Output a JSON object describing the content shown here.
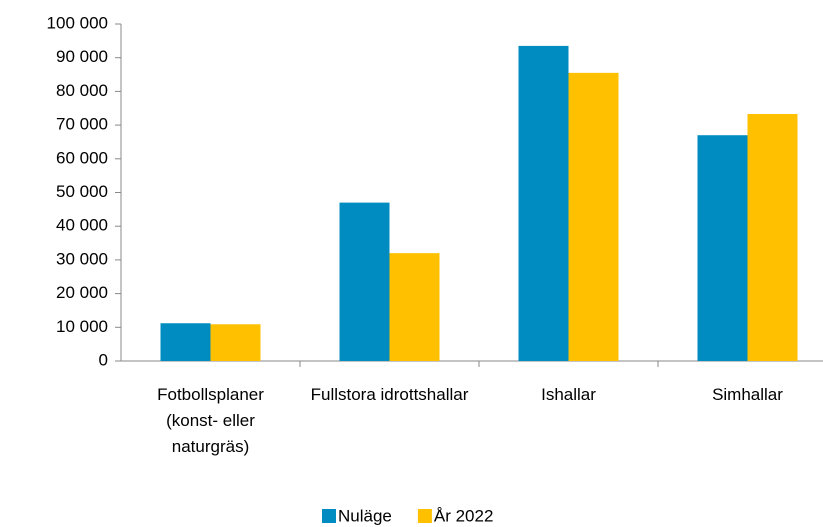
{
  "chart_data": {
    "type": "bar",
    "categories": [
      "Fotbollsplaner (konst- eller naturgräs)",
      "Fullstora idrottshallar",
      "Ishallar",
      "Simhallar"
    ],
    "series": [
      {
        "name": "Nuläge",
        "color": "#008cc0",
        "values": [
          11200,
          47000,
          93500,
          67000
        ]
      },
      {
        "name": "År 2022",
        "color": "#ffc000",
        "values": [
          10900,
          32000,
          85500,
          73300
        ]
      }
    ],
    "ylim": [
      0,
      100000
    ],
    "yticks": [
      0,
      {
        "value": 10000,
        "label": "10 000"
      },
      {
        "value": 20000,
        "label": "20 000"
      },
      {
        "value": 30000,
        "label": "30 000"
      },
      {
        "value": 40000,
        "label": "40 000"
      },
      {
        "value": 50000,
        "label": "50 000"
      },
      {
        "value": 60000,
        "label": "60 000"
      },
      {
        "value": 70000,
        "label": "70 000"
      },
      {
        "value": 80000,
        "label": "80 000"
      },
      {
        "value": 90000,
        "label": "90 000"
      },
      {
        "value": 100000,
        "label": "100 000"
      }
    ],
    "legend": "bottom"
  }
}
